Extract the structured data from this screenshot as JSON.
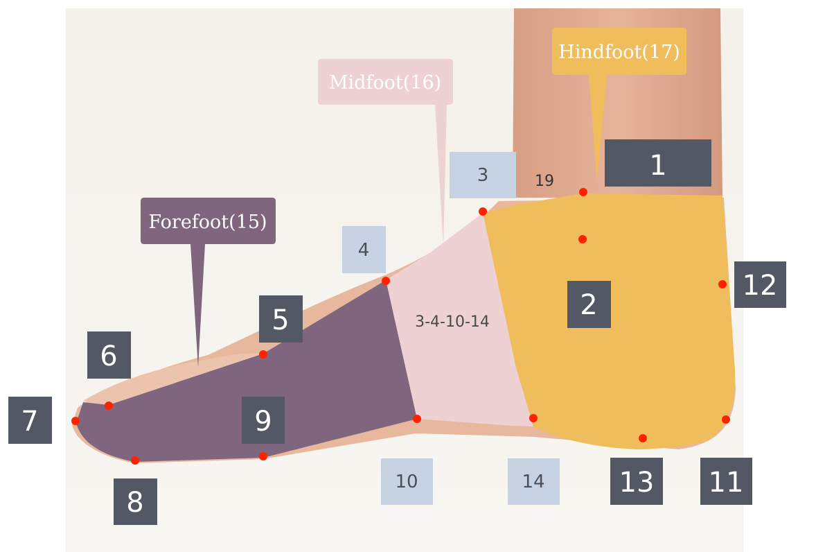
{
  "regions": [
    {
      "key": "forefoot",
      "label": "Forefoot(15)",
      "color": "#7f667e",
      "text_color": "#ffffff"
    },
    {
      "key": "midfoot",
      "label": "Midfoot(16)",
      "color": "#eed1d3",
      "text_color": "#ffffff"
    },
    {
      "key": "hindfoot",
      "label": "Hindfoot(17)",
      "color": "#efbd5c",
      "text_color": "#ffffff"
    }
  ],
  "midfoot_inner_label": "3-4-10-14",
  "dark_markers": [
    "1",
    "2",
    "5",
    "6",
    "7",
    "8",
    "9",
    "11",
    "12",
    "13"
  ],
  "light_markers": [
    "3",
    "4",
    "10",
    "14"
  ],
  "ruler_marks": [
    "19"
  ],
  "colors": {
    "dark_marker_bg": "#525964",
    "light_marker_bg": "#c7d3e2",
    "light_marker_text": "#4a4f57",
    "landmark_dot": "#ff2200",
    "skin": "#e8b69a",
    "background": "#f3f0ea"
  }
}
